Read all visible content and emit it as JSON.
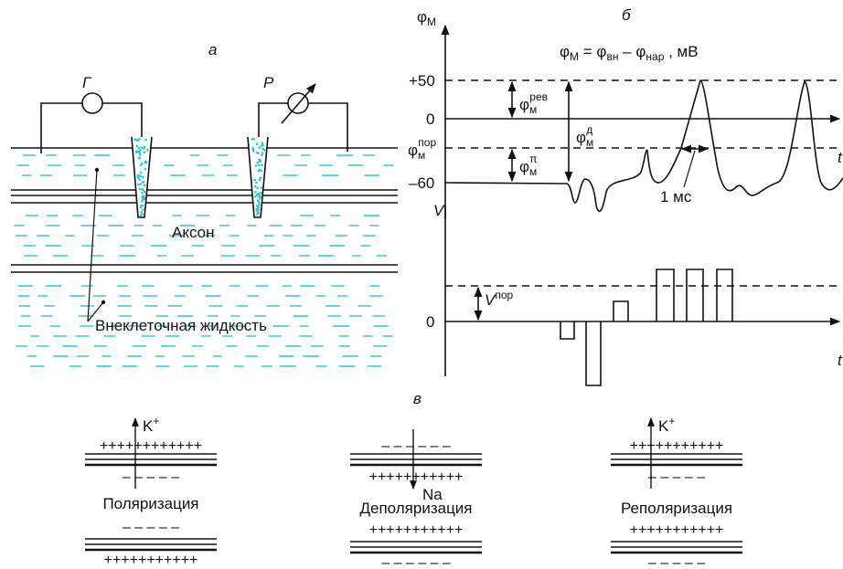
{
  "panel_a": {
    "label": "а",
    "generator": "Г",
    "recorder": "Р",
    "axon": "Аксон",
    "fluid": "Внеклеточная жидкость"
  },
  "panel_b": {
    "label": "б",
    "y_axis": {
      "base": "φ",
      "sub": "М"
    },
    "formula": [
      "φ",
      {
        "sub": "М"
      },
      " = φ",
      {
        "sub": "вн"
      },
      " – φ",
      {
        "sub": "нар"
      },
      " , мВ"
    ],
    "ticks": [
      "+50",
      "0",
      "–60"
    ],
    "rev": {
      "base": "φ",
      "sub": "м",
      "sup": "рев"
    },
    "threshold": {
      "base": "φ",
      "sub": "м",
      "sup": "пор"
    },
    "action": {
      "base": "φ",
      "sub": "м",
      "sup": "д"
    },
    "pi": {
      "base": "φ",
      "sub": "м",
      "sup": "π"
    },
    "time_scale": "1 мс",
    "t_axis": "t",
    "v_axis": "V",
    "v_threshold": {
      "base": "V",
      "sup": "пор"
    },
    "v_zero": "0",
    "t_axis2": "t"
  },
  "panel_c": {
    "label": "в",
    "states": [
      {
        "ion": "K",
        "charge": "+",
        "caption": "Поляризация",
        "top": "++++++++++++",
        "bottom": "– – – – –",
        "lower_top": "– – – – –",
        "lower_bottom": "+++++++++++"
      },
      {
        "ion": "Na",
        "caption": "Деполяризация",
        "top": "– – – – – –",
        "bottom": "+++++++++++",
        "lower_top": "+++++++++++",
        "lower_bottom": "– – – – – –"
      },
      {
        "ion": "K",
        "charge": "+",
        "caption": "Реполяризация",
        "top": "+++++++++++",
        "bottom": "– – – – –",
        "lower_top": "+++++++++++",
        "lower_bottom": "– – – – –"
      }
    ]
  }
}
